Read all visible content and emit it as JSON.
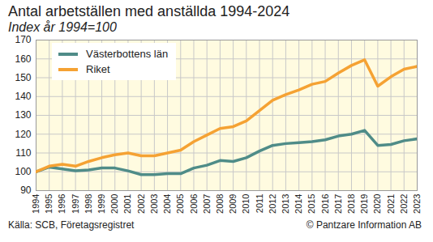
{
  "chart_data": {
    "type": "line",
    "title": "Antal arbetställen med anställda 1994-2024",
    "subtitle": "Index år 1994=100",
    "source": "Källa: SCB, Företagsregistret",
    "credit": "© Pantzare Information AB",
    "x": [
      1994,
      1995,
      1996,
      1997,
      1998,
      1999,
      2000,
      2001,
      2002,
      2003,
      2004,
      2005,
      2006,
      2007,
      2008,
      2009,
      2010,
      2011,
      2012,
      2013,
      2014,
      2015,
      2016,
      2017,
      2018,
      2019,
      2020,
      2021,
      2022,
      2023
    ],
    "series": [
      {
        "name": "Västerbottens län",
        "color": "#4f8c88",
        "values": [
          100,
          102.5,
          101.5,
          100.5,
          101,
          102,
          102,
          100.5,
          98.5,
          98.5,
          99,
          99,
          102,
          103.5,
          106,
          105.5,
          107.5,
          111,
          114,
          115,
          115.5,
          116,
          117,
          119,
          120,
          122,
          114,
          114.5,
          116.5,
          117.5
        ]
      },
      {
        "name": "Riket",
        "color": "#f5a233",
        "values": [
          100,
          103,
          104,
          103,
          105.5,
          107.5,
          109,
          110,
          108.5,
          108.5,
          110,
          111.5,
          116,
          119.5,
          123,
          124,
          127,
          132.5,
          138,
          141,
          143.5,
          146.5,
          148,
          152.5,
          156.5,
          159.5,
          145.5,
          150.5,
          154.5,
          156
        ]
      }
    ],
    "xlim": [
      1994,
      2023
    ],
    "ylim": [
      90,
      170
    ],
    "xticks": [
      1994,
      1995,
      1996,
      1997,
      1998,
      1999,
      2000,
      2001,
      2002,
      2003,
      2004,
      2005,
      2006,
      2007,
      2008,
      2009,
      2010,
      2011,
      2012,
      2013,
      2014,
      2015,
      2016,
      2017,
      2018,
      2019,
      2020,
      2021,
      2022,
      2023
    ],
    "yticks": [
      90,
      100,
      110,
      120,
      130,
      140,
      150,
      160,
      170
    ],
    "grid": true,
    "legend": "top-left"
  }
}
